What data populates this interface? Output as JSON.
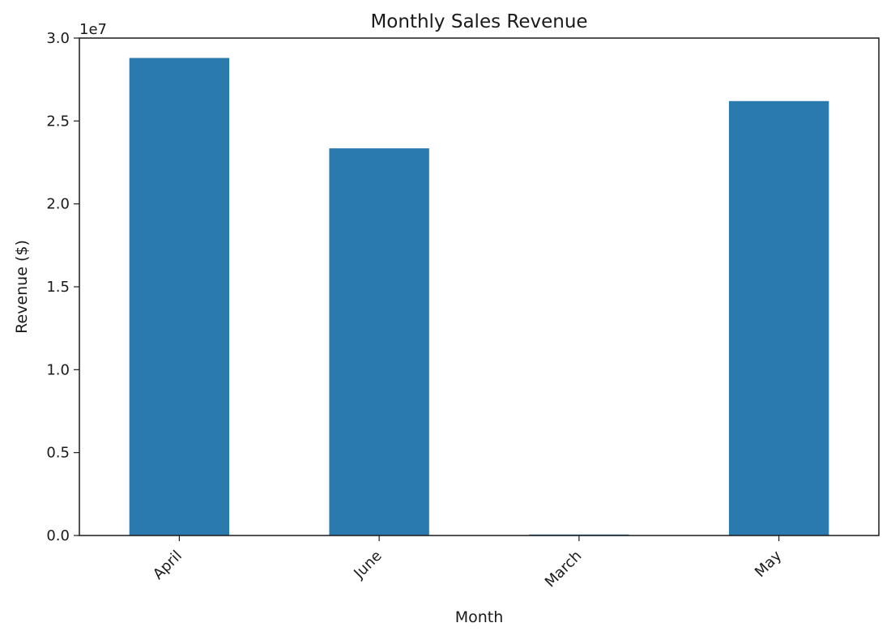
{
  "chart_data": {
    "type": "bar",
    "title": "Monthly Sales Revenue",
    "xlabel": "Month",
    "ylabel": "Revenue ($)",
    "y_offset_label": "1e7",
    "categories": [
      "April",
      "June",
      "March",
      "May"
    ],
    "values": [
      28800000,
      23350000,
      60000,
      26200000
    ],
    "ylim": [
      0,
      30000000
    ],
    "y_scale_divisor": 10000000,
    "yticks": [
      0,
      5000000,
      10000000,
      15000000,
      20000000,
      25000000,
      30000000
    ],
    "ytick_labels": [
      "0.0",
      "0.5",
      "1.0",
      "1.5",
      "2.0",
      "2.5",
      "3.0"
    ],
    "x_tick_rotation_deg": 45,
    "grid": false,
    "legend": "none",
    "bar_color": "#2a7ab0"
  }
}
